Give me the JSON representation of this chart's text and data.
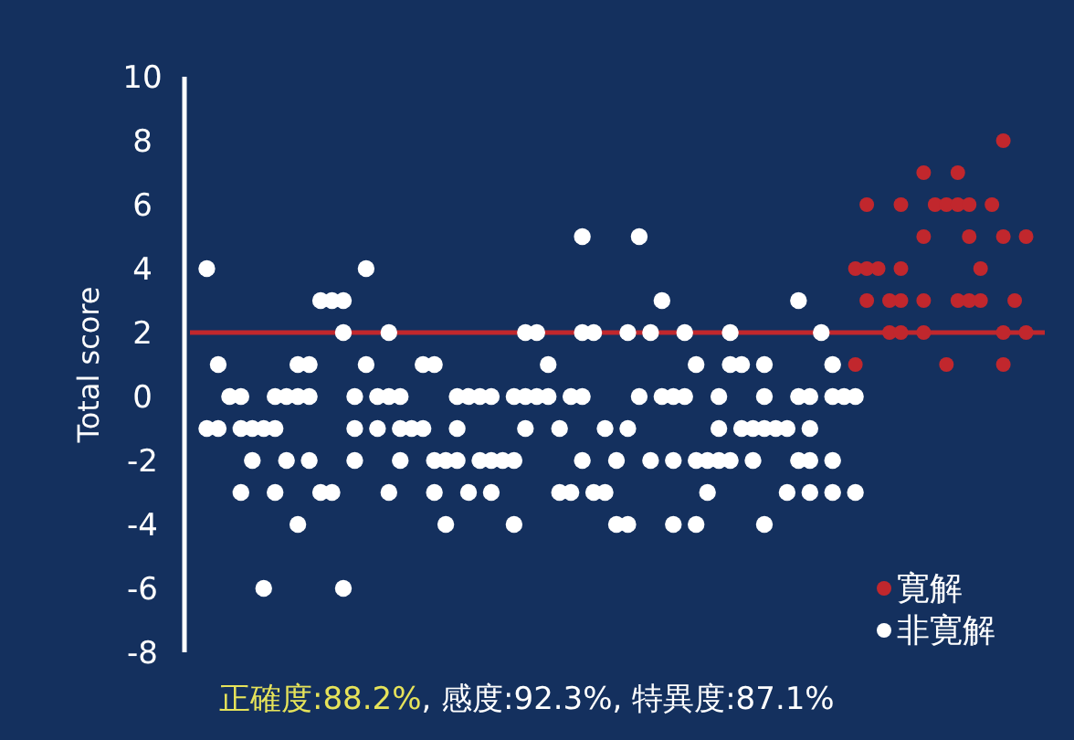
{
  "chart_data": {
    "type": "scatter",
    "ylabel": "Total score",
    "ylim": [
      -8,
      10
    ],
    "yticks": [
      -8,
      -6,
      -4,
      -2,
      0,
      2,
      4,
      6,
      8,
      10
    ],
    "tick_labels": "y",
    "grid": false,
    "legend": "bottom right",
    "marker": "circle",
    "categories": [
      null,
      null,
      null,
      null,
      null,
      null,
      null,
      null,
      null,
      null,
      null,
      null,
      null,
      null,
      null,
      null,
      null,
      null,
      null,
      null,
      null,
      null,
      null,
      null,
      null,
      null,
      null,
      null,
      null,
      null,
      null,
      null,
      null,
      null,
      null,
      null,
      null,
      null,
      null,
      null,
      null,
      null,
      null,
      null,
      null,
      null,
      null,
      null,
      null,
      null,
      null,
      null,
      null,
      null,
      null,
      null,
      null,
      null,
      null,
      null,
      null,
      null,
      null,
      null,
      null,
      null,
      null,
      null,
      null,
      null,
      null,
      null,
      null,
      null,
      null
    ],
    "series": [
      {
        "name": "寛解",
        "color": "#c1272d",
        "values": [
          null,
          null,
          null,
          null,
          null,
          null,
          null,
          null,
          null,
          null,
          null,
          null,
          null,
          null,
          null,
          null,
          null,
          null,
          null,
          null,
          null,
          null,
          null,
          null,
          null,
          null,
          null,
          null,
          null,
          null,
          null,
          null,
          null,
          null,
          null,
          null,
          null,
          null,
          null,
          null,
          null,
          null,
          null,
          null,
          null,
          null,
          null,
          null,
          null,
          null,
          null,
          null,
          null,
          null,
          null,
          null,
          null,
          null,
          null,
          null,
          null,
          null,
          null,
          null,
          null,
          null,
          null,
          null,
          null,
          null,
          null,
          8,
          null,
          null,
          null
        ]
      },
      {
        "color": "#c1272d",
        "values": [
          null,
          null,
          null,
          null,
          null,
          null,
          null,
          null,
          null,
          null,
          null,
          null,
          null,
          null,
          null,
          null,
          null,
          null,
          null,
          null,
          null,
          null,
          null,
          null,
          null,
          null,
          null,
          null,
          null,
          null,
          null,
          null,
          null,
          null,
          null,
          null,
          null,
          null,
          null,
          null,
          null,
          null,
          null,
          null,
          null,
          null,
          null,
          null,
          null,
          null,
          null,
          null,
          null,
          null,
          null,
          null,
          null,
          null,
          null,
          null,
          null,
          null,
          null,
          null,
          7,
          null,
          null,
          7,
          null,
          null,
          null,
          null,
          null,
          null,
          null
        ]
      },
      {
        "color": "#c1272d",
        "values": [
          null,
          null,
          null,
          null,
          null,
          null,
          null,
          null,
          null,
          null,
          null,
          null,
          null,
          null,
          null,
          null,
          null,
          null,
          null,
          null,
          null,
          null,
          null,
          null,
          null,
          null,
          null,
          null,
          null,
          null,
          null,
          null,
          null,
          null,
          null,
          null,
          null,
          null,
          null,
          null,
          null,
          null,
          null,
          null,
          null,
          null,
          null,
          null,
          null,
          null,
          null,
          null,
          null,
          null,
          null,
          null,
          null,
          null,
          null,
          6,
          null,
          null,
          6,
          null,
          null,
          6,
          6,
          6,
          6,
          null,
          6,
          null,
          null,
          null,
          null
        ]
      },
      {
        "color": "#c1272d",
        "values": [
          null,
          null,
          null,
          null,
          null,
          null,
          null,
          null,
          null,
          null,
          null,
          null,
          null,
          null,
          null,
          null,
          null,
          null,
          null,
          null,
          null,
          null,
          null,
          null,
          null,
          null,
          null,
          null,
          null,
          null,
          null,
          null,
          null,
          null,
          null,
          null,
          null,
          null,
          null,
          null,
          null,
          null,
          null,
          null,
          null,
          null,
          null,
          null,
          null,
          null,
          null,
          null,
          null,
          null,
          null,
          null,
          null,
          null,
          null,
          null,
          null,
          null,
          null,
          null,
          5,
          null,
          null,
          null,
          5,
          null,
          null,
          5,
          null,
          5,
          null
        ]
      },
      {
        "color": "#c1272d",
        "values": [
          null,
          null,
          null,
          null,
          null,
          null,
          null,
          null,
          null,
          null,
          null,
          null,
          null,
          null,
          null,
          null,
          null,
          null,
          null,
          null,
          null,
          null,
          null,
          null,
          null,
          null,
          null,
          null,
          null,
          null,
          null,
          null,
          null,
          null,
          null,
          null,
          null,
          null,
          null,
          null,
          null,
          null,
          null,
          null,
          null,
          null,
          null,
          null,
          null,
          null,
          null,
          null,
          null,
          null,
          null,
          null,
          null,
          null,
          4,
          4,
          4,
          null,
          4,
          null,
          null,
          null,
          null,
          null,
          null,
          4,
          null,
          null,
          null,
          null,
          null
        ]
      },
      {
        "color": "#c1272d",
        "values": [
          null,
          null,
          null,
          null,
          null,
          null,
          null,
          null,
          null,
          null,
          null,
          null,
          null,
          null,
          null,
          null,
          null,
          null,
          null,
          null,
          null,
          null,
          null,
          null,
          null,
          null,
          null,
          null,
          null,
          null,
          null,
          null,
          null,
          null,
          null,
          null,
          null,
          null,
          null,
          null,
          null,
          null,
          null,
          null,
          null,
          null,
          null,
          null,
          null,
          null,
          null,
          null,
          null,
          null,
          null,
          null,
          null,
          null,
          null,
          3,
          null,
          3,
          3,
          null,
          3,
          null,
          null,
          3,
          3,
          3,
          null,
          null,
          3,
          null,
          null
        ]
      },
      {
        "color": "#c1272d",
        "values": [
          null,
          null,
          null,
          null,
          null,
          null,
          null,
          null,
          null,
          null,
          null,
          null,
          null,
          null,
          null,
          null,
          null,
          null,
          null,
          null,
          null,
          null,
          null,
          null,
          null,
          null,
          null,
          null,
          null,
          null,
          null,
          null,
          null,
          null,
          null,
          null,
          null,
          null,
          null,
          null,
          null,
          null,
          null,
          null,
          null,
          null,
          null,
          null,
          null,
          null,
          null,
          null,
          null,
          null,
          null,
          null,
          null,
          null,
          null,
          null,
          null,
          2,
          2,
          null,
          2,
          null,
          null,
          null,
          null,
          null,
          null,
          2,
          null,
          2,
          null
        ]
      },
      {
        "color": "#c1272d",
        "values": [
          null,
          null,
          null,
          null,
          null,
          null,
          null,
          null,
          null,
          null,
          null,
          null,
          null,
          null,
          null,
          null,
          null,
          null,
          null,
          null,
          null,
          null,
          null,
          null,
          null,
          null,
          null,
          null,
          null,
          null,
          null,
          null,
          null,
          null,
          null,
          null,
          null,
          null,
          null,
          null,
          null,
          null,
          null,
          null,
          null,
          null,
          null,
          null,
          null,
          null,
          null,
          null,
          null,
          null,
          null,
          null,
          null,
          null,
          1,
          null,
          null,
          null,
          null,
          null,
          null,
          null,
          1,
          null,
          null,
          null,
          null,
          1,
          null,
          null,
          null
        ]
      },
      {
        "name": "非寛解",
        "color": "#ffffff",
        "values": [
          null,
          null,
          null,
          null,
          null,
          null,
          null,
          null,
          null,
          null,
          null,
          null,
          null,
          null,
          null,
          null,
          null,
          null,
          null,
          null,
          null,
          null,
          null,
          null,
          null,
          null,
          null,
          null,
          null,
          null,
          null,
          null,
          null,
          null,
          5,
          null,
          null,
          null,
          null,
          5,
          null,
          null,
          null,
          null,
          null,
          null,
          null,
          null,
          null,
          null,
          null,
          null,
          null,
          null,
          null,
          null,
          null,
          null,
          null,
          null,
          null,
          null,
          null,
          null,
          null,
          null,
          null,
          null,
          null,
          null,
          null,
          null,
          null,
          null,
          null
        ]
      },
      {
        "color": "#ffffff",
        "values": [
          null,
          4,
          null,
          null,
          null,
          null,
          null,
          null,
          null,
          null,
          null,
          null,
          null,
          null,
          null,
          4,
          null,
          null,
          null,
          null,
          null,
          null,
          null,
          null,
          null,
          null,
          null,
          null,
          null,
          null,
          null,
          null,
          null,
          null,
          null,
          null,
          null,
          null,
          null,
          null,
          null,
          null,
          null,
          null,
          null,
          null,
          null,
          null,
          null,
          null,
          null,
          null,
          null,
          null,
          null,
          null,
          null,
          null,
          null,
          null,
          null,
          null,
          null,
          null,
          null,
          null,
          null,
          null,
          null,
          null,
          null,
          null,
          null,
          null,
          null
        ]
      },
      {
        "color": "#ffffff",
        "values": [
          null,
          null,
          null,
          null,
          null,
          null,
          null,
          null,
          null,
          null,
          null,
          3,
          3,
          3,
          null,
          null,
          null,
          null,
          null,
          null,
          null,
          null,
          null,
          null,
          null,
          null,
          null,
          null,
          null,
          null,
          null,
          null,
          null,
          null,
          null,
          null,
          null,
          null,
          null,
          null,
          null,
          3,
          null,
          null,
          null,
          null,
          null,
          null,
          null,
          null,
          null,
          null,
          null,
          3,
          null,
          null,
          null,
          null,
          null,
          null,
          null,
          null,
          null,
          null,
          null,
          null,
          null,
          null,
          null,
          null,
          null,
          null,
          null,
          null,
          null
        ]
      },
      {
        "color": "#ffffff",
        "values": [
          null,
          null,
          null,
          null,
          null,
          null,
          null,
          null,
          null,
          null,
          null,
          null,
          null,
          2,
          null,
          null,
          null,
          2,
          null,
          null,
          null,
          null,
          null,
          null,
          null,
          null,
          null,
          null,
          null,
          2,
          2,
          null,
          null,
          null,
          2,
          2,
          null,
          null,
          2,
          null,
          2,
          null,
          null,
          2,
          null,
          null,
          null,
          2,
          null,
          null,
          null,
          null,
          null,
          null,
          null,
          2,
          null,
          null,
          null,
          null,
          null,
          null,
          null,
          null,
          null,
          null,
          null,
          null,
          null,
          null,
          null,
          null,
          null,
          null,
          null
        ]
      },
      {
        "color": "#ffffff",
        "values": [
          null,
          null,
          1,
          null,
          null,
          null,
          null,
          null,
          null,
          1,
          1,
          null,
          null,
          null,
          null,
          1,
          null,
          null,
          null,
          null,
          1,
          1,
          null,
          null,
          null,
          null,
          null,
          null,
          null,
          null,
          null,
          1,
          null,
          null,
          null,
          null,
          null,
          null,
          null,
          null,
          null,
          null,
          null,
          null,
          1,
          null,
          null,
          1,
          1,
          null,
          1,
          null,
          null,
          null,
          null,
          null,
          1,
          null,
          null,
          null,
          null,
          null,
          null,
          null,
          null,
          null,
          null,
          null,
          null,
          null,
          null,
          null,
          null,
          null,
          null
        ]
      },
      {
        "color": "#ffffff",
        "values": [
          null,
          null,
          null,
          0,
          0,
          null,
          null,
          0,
          0,
          0,
          0,
          null,
          null,
          null,
          0,
          null,
          0,
          0,
          0,
          null,
          null,
          null,
          null,
          0,
          0,
          0,
          0,
          null,
          0,
          0,
          0,
          0,
          null,
          0,
          0,
          null,
          null,
          null,
          null,
          0,
          null,
          0,
          0,
          0,
          null,
          null,
          0,
          null,
          null,
          null,
          0,
          null,
          null,
          0,
          0,
          null,
          0,
          0,
          0,
          null,
          null,
          null,
          null,
          null,
          null,
          null,
          null,
          null,
          null,
          null,
          null,
          null,
          null,
          null,
          null
        ]
      },
      {
        "color": "#ffffff",
        "values": [
          null,
          -1,
          -1,
          null,
          -1,
          -1,
          -1,
          -1,
          null,
          null,
          null,
          null,
          null,
          null,
          -1,
          null,
          -1,
          null,
          -1,
          -1,
          -1,
          null,
          null,
          -1,
          null,
          null,
          null,
          null,
          null,
          -1,
          null,
          null,
          -1,
          null,
          null,
          null,
          -1,
          null,
          -1,
          null,
          null,
          null,
          null,
          null,
          null,
          null,
          -1,
          null,
          -1,
          -1,
          -1,
          -1,
          -1,
          null,
          -1,
          null,
          null,
          null,
          null,
          null,
          null,
          null,
          null,
          null,
          null,
          null,
          null,
          null,
          null,
          null,
          null,
          null,
          null,
          null,
          null
        ]
      },
      {
        "color": "#ffffff",
        "values": [
          null,
          null,
          null,
          null,
          null,
          -2,
          null,
          null,
          -2,
          null,
          -2,
          null,
          null,
          null,
          -2,
          null,
          null,
          null,
          -2,
          null,
          null,
          -2,
          -2,
          -2,
          null,
          -2,
          -2,
          -2,
          -2,
          null,
          null,
          null,
          null,
          null,
          -2,
          null,
          null,
          -2,
          null,
          null,
          -2,
          null,
          -2,
          null,
          -2,
          -2,
          -2,
          -2,
          null,
          -2,
          null,
          null,
          null,
          -2,
          -2,
          null,
          -2,
          null,
          null,
          null,
          null,
          null,
          null,
          null,
          null,
          null,
          null,
          null,
          null,
          null,
          null,
          null,
          null,
          null,
          null
        ]
      },
      {
        "color": "#ffffff",
        "values": [
          null,
          null,
          null,
          null,
          -3,
          null,
          null,
          -3,
          null,
          null,
          null,
          -3,
          -3,
          null,
          null,
          null,
          null,
          -3,
          null,
          null,
          null,
          -3,
          null,
          null,
          -3,
          null,
          -3,
          null,
          null,
          null,
          null,
          null,
          -3,
          -3,
          null,
          -3,
          -3,
          null,
          null,
          null,
          null,
          null,
          null,
          null,
          null,
          -3,
          null,
          null,
          null,
          null,
          null,
          null,
          -3,
          null,
          -3,
          null,
          -3,
          null,
          -3,
          null,
          null,
          null,
          null,
          null,
          null,
          null,
          null,
          null,
          null,
          null,
          null,
          null,
          null,
          null,
          null
        ]
      },
      {
        "color": "#ffffff",
        "values": [
          null,
          null,
          null,
          null,
          null,
          null,
          null,
          null,
          null,
          -4,
          null,
          null,
          null,
          null,
          null,
          null,
          null,
          null,
          null,
          null,
          null,
          null,
          -4,
          null,
          null,
          null,
          null,
          null,
          -4,
          null,
          null,
          null,
          null,
          null,
          null,
          null,
          null,
          -4,
          -4,
          null,
          null,
          null,
          -4,
          null,
          -4,
          null,
          null,
          null,
          null,
          null,
          -4,
          null,
          null,
          null,
          null,
          null,
          null,
          null,
          null,
          null,
          null,
          null,
          null,
          null,
          null,
          null,
          null,
          null,
          null,
          null,
          null,
          null,
          null,
          null,
          null
        ]
      },
      {
        "color": "#ffffff",
        "values": [
          null,
          null,
          null,
          null,
          null,
          null,
          -6,
          null,
          null,
          null,
          null,
          null,
          null,
          -6,
          null,
          null,
          null,
          null,
          null,
          null,
          null,
          null,
          null,
          null,
          null,
          null,
          null,
          null,
          null,
          null,
          null,
          null,
          null,
          null,
          null,
          null,
          null,
          null,
          null,
          null,
          null,
          null,
          null,
          null,
          null,
          null,
          null,
          null,
          null,
          null,
          null,
          null,
          null,
          null,
          null,
          null,
          null,
          null,
          null,
          null,
          null,
          null,
          null,
          null,
          null,
          null,
          null,
          null,
          null,
          null,
          null,
          null,
          null,
          null,
          null
        ]
      }
    ],
    "ref_lines": [
      {
        "axis": "y",
        "value": 2,
        "color": "#c1272d"
      }
    ],
    "annotations": [
      "正確度:88.2%",
      ", 感度:92.3%, 特異度:87.1%"
    ]
  }
}
